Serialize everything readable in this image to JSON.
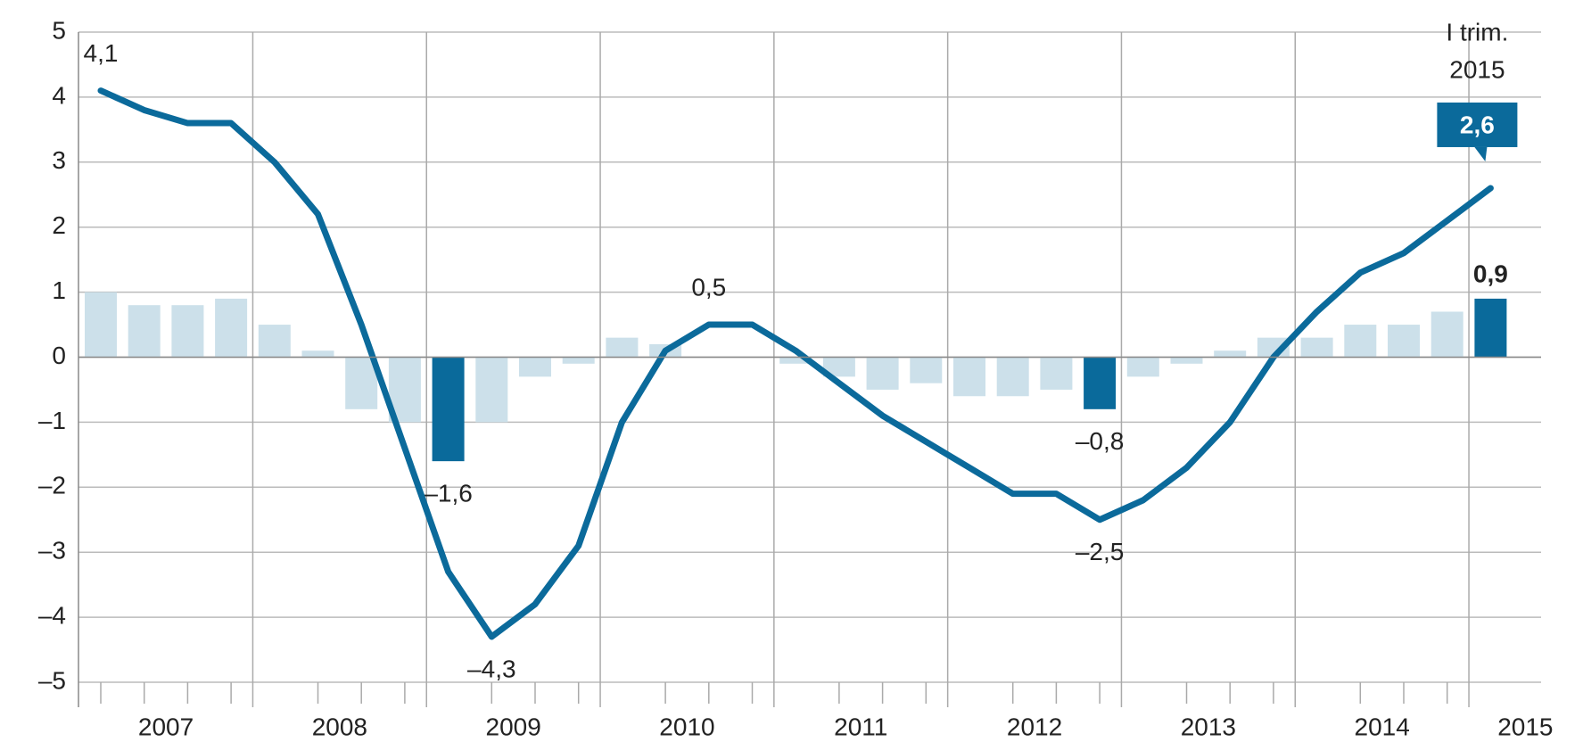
{
  "chart_data": {
    "type": "bar_line",
    "year_labels": [
      "2007",
      "2008",
      "2009",
      "2010",
      "2011",
      "2012",
      "2013",
      "2014",
      "2015"
    ],
    "annotation": [
      "I trim.",
      "2015"
    ],
    "series": [
      {
        "name": null,
        "type": "bar",
        "color": "#cce0ea",
        "highlight_color": "#0a6a9b",
        "colors": [
          "#cce0ea",
          "#cce0ea",
          "#cce0ea",
          "#cce0ea",
          "#cce0ea",
          "#cce0ea",
          "#cce0ea",
          "#cce0ea",
          "#0a6a9b",
          "#cce0ea",
          "#cce0ea",
          "#cce0ea",
          "#cce0ea",
          "#cce0ea",
          "#cce0ea",
          "#cce0ea",
          "#cce0ea",
          "#cce0ea",
          "#cce0ea",
          "#cce0ea",
          "#cce0ea",
          "#cce0ea",
          "#cce0ea",
          "#0a6a9b",
          "#cce0ea",
          "#cce0ea",
          "#cce0ea",
          "#cce0ea",
          "#cce0ea",
          "#cce0ea",
          "#cce0ea",
          "#cce0ea",
          "#0a6a9b"
        ],
        "values": [
          1.0,
          0.8,
          0.8,
          0.9,
          0.5,
          0.1,
          -0.8,
          -1.0,
          -1.6,
          -1.0,
          -0.3,
          -0.1,
          0.3,
          0.2,
          0.0,
          0.0,
          -0.1,
          -0.3,
          -0.5,
          -0.4,
          -0.6,
          -0.6,
          -0.5,
          -0.8,
          -0.3,
          -0.1,
          0.1,
          0.3,
          0.3,
          0.5,
          0.5,
          0.7,
          0.9
        ],
        "value_labels": [
          null,
          null,
          null,
          null,
          null,
          null,
          null,
          null,
          "–1,6",
          null,
          null,
          null,
          null,
          null,
          null,
          null,
          null,
          null,
          null,
          null,
          null,
          null,
          null,
          "–0,8",
          null,
          null,
          null,
          null,
          null,
          null,
          null,
          null,
          "0,9"
        ]
      },
      {
        "name": null,
        "type": "line",
        "color": "#0b6a9b",
        "values": [
          4.1,
          3.8,
          3.6,
          3.6,
          3.0,
          2.2,
          0.5,
          -1.4,
          -3.3,
          -4.3,
          -3.8,
          -2.9,
          -1.0,
          0.1,
          0.5,
          0.5,
          0.1,
          -0.4,
          -0.9,
          -1.3,
          -1.7,
          -2.1,
          -2.1,
          -2.5,
          -2.2,
          -1.7,
          -1.0,
          0.0,
          0.7,
          1.3,
          1.6,
          2.1,
          2.6
        ],
        "value_labels": [
          "4,1",
          null,
          null,
          null,
          null,
          null,
          null,
          null,
          null,
          "–4,3",
          null,
          null,
          null,
          null,
          "0,5",
          null,
          null,
          null,
          null,
          null,
          null,
          null,
          null,
          "–2,5",
          null,
          null,
          null,
          null,
          null,
          null,
          null,
          null,
          "2,6"
        ]
      }
    ],
    "ylim": [
      -5,
      5
    ],
    "yticks": [
      {
        "value": -5,
        "label": "–5"
      },
      {
        "value": -4,
        "label": "–4"
      },
      {
        "value": -3,
        "label": "–3"
      },
      {
        "value": -2,
        "label": "–2"
      },
      {
        "value": -1,
        "label": "–1"
      },
      0,
      1,
      2,
      3,
      4,
      5
    ],
    "grid": true
  }
}
